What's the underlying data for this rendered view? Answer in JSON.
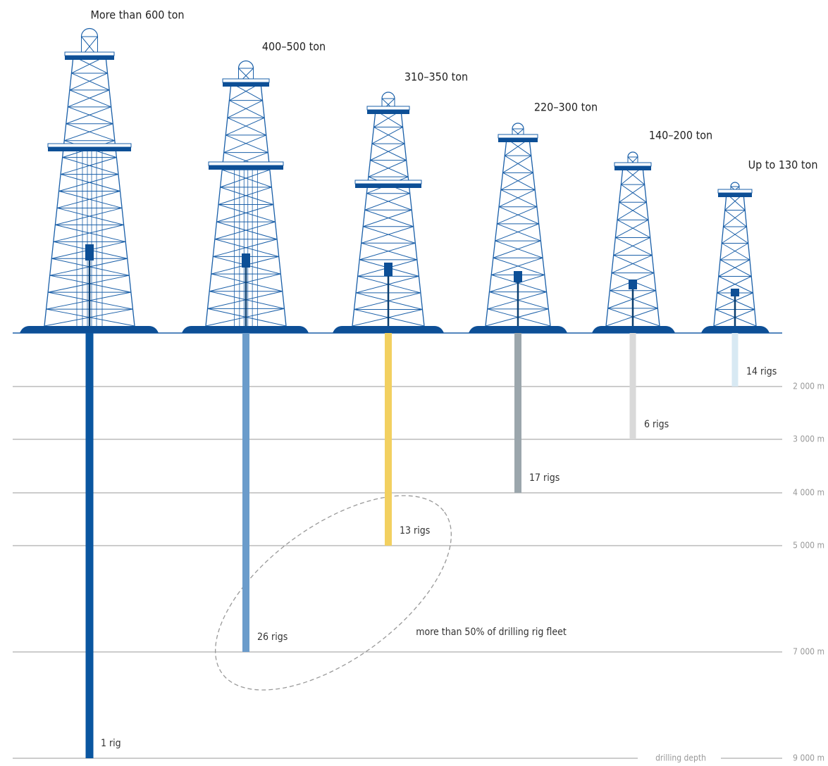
{
  "chart_data": {
    "type": "bar",
    "categories": [
      "More than 600 ton",
      "400–500 ton",
      "310–350 ton",
      "220–300 ton",
      "140–200 ton",
      "Up to 130 ton"
    ],
    "values": [
      9000,
      7000,
      5000,
      4000,
      3000,
      2000
    ],
    "colors": [
      "#0a56a0",
      "#6b9ccb",
      "#f2d060",
      "#9ba6ac",
      "#d9d9d9",
      "#d8e9f3"
    ],
    "rig_labels": [
      "1 rig",
      "26 rigs",
      "13 rigs",
      "17 rigs",
      "6 rigs",
      "14 rigs"
    ],
    "annotation": "more than 50% of drilling rig fleet",
    "axis_label": "drilling depth",
    "ylim": [
      0,
      9000
    ],
    "yticks": [
      {
        "value": 2000,
        "label": "2 000 m"
      },
      {
        "value": 3000,
        "label": "3 000 m"
      },
      {
        "value": 4000,
        "label": "4 000 m"
      },
      {
        "value": 5000,
        "label": "5 000 m"
      },
      {
        "value": 7000,
        "label": "7 000 m"
      },
      {
        "value": 9000,
        "label": "9 000 m"
      }
    ],
    "grid": true
  }
}
